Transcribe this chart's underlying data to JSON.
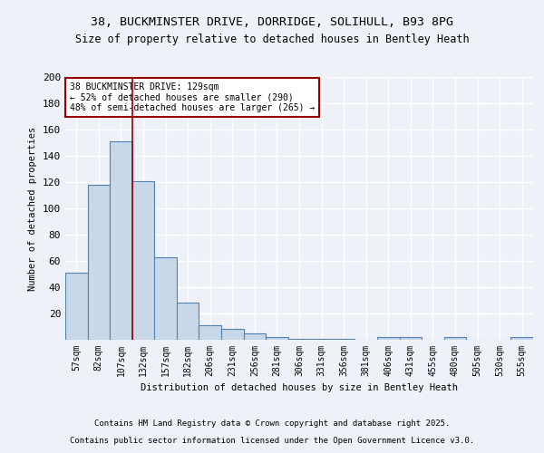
{
  "title1": "38, BUCKMINSTER DRIVE, DORRIDGE, SOLIHULL, B93 8PG",
  "title2": "Size of property relative to detached houses in Bentley Heath",
  "xlabel": "Distribution of detached houses by size in Bentley Heath",
  "ylabel": "Number of detached properties",
  "categories": [
    "57sqm",
    "82sqm",
    "107sqm",
    "132sqm",
    "157sqm",
    "182sqm",
    "206sqm",
    "231sqm",
    "256sqm",
    "281sqm",
    "306sqm",
    "331sqm",
    "356sqm",
    "381sqm",
    "406sqm",
    "431sqm",
    "455sqm",
    "480sqm",
    "505sqm",
    "530sqm",
    "555sqm"
  ],
  "values": [
    51,
    118,
    151,
    121,
    63,
    28,
    11,
    8,
    5,
    2,
    1,
    1,
    1,
    0,
    2,
    2,
    0,
    2,
    0,
    0,
    2
  ],
  "bar_color": "#c8d8e8",
  "bar_edge_color": "#5080b0",
  "bar_edge_width": 0.8,
  "vline_x": 2.5,
  "vline_color": "#990000",
  "annotation_text": "38 BUCKMINSTER DRIVE: 129sqm\n← 52% of detached houses are smaller (290)\n48% of semi-detached houses are larger (265) →",
  "annotation_box_color": "white",
  "annotation_box_edge": "#990000",
  "ylim": [
    0,
    200
  ],
  "yticks": [
    0,
    20,
    40,
    60,
    80,
    100,
    120,
    140,
    160,
    180,
    200
  ],
  "footer1": "Contains HM Land Registry data © Crown copyright and database right 2025.",
  "footer2": "Contains public sector information licensed under the Open Government Licence v3.0.",
  "bg_color": "#eef2f8"
}
